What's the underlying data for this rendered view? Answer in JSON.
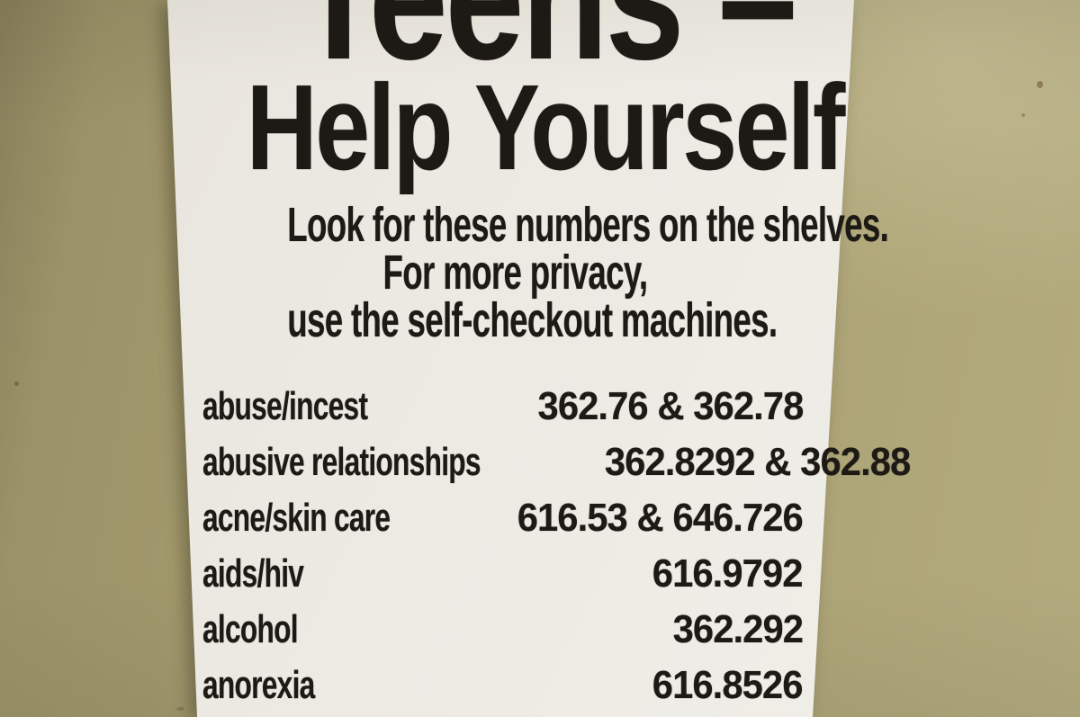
{
  "sign": {
    "title_line1": "Teens –",
    "title_line2": "Help Yourself",
    "subtitle_lines": [
      "Look for these numbers on the shelves.",
      "For more privacy,",
      "use the self-checkout machines."
    ],
    "entries": [
      {
        "topic": "abuse/incest",
        "numbers": "362.76 & 362.78"
      },
      {
        "topic": "abusive relationships",
        "numbers": "362.8292 & 362.88"
      },
      {
        "topic": "acne/skin care",
        "numbers": "616.53 & 646.726"
      },
      {
        "topic": "aids/hiv",
        "numbers": "616.9792"
      },
      {
        "topic": "alcohol",
        "numbers": "362.292"
      },
      {
        "topic": "anorexia",
        "numbers": "616.8526"
      }
    ]
  },
  "colors": {
    "wall": "#a69c6f",
    "wall_dark_edge": "#877e5a",
    "wall_light": "#b3aa7e",
    "paper": "#edebe4",
    "ink": "#1d1a16"
  }
}
